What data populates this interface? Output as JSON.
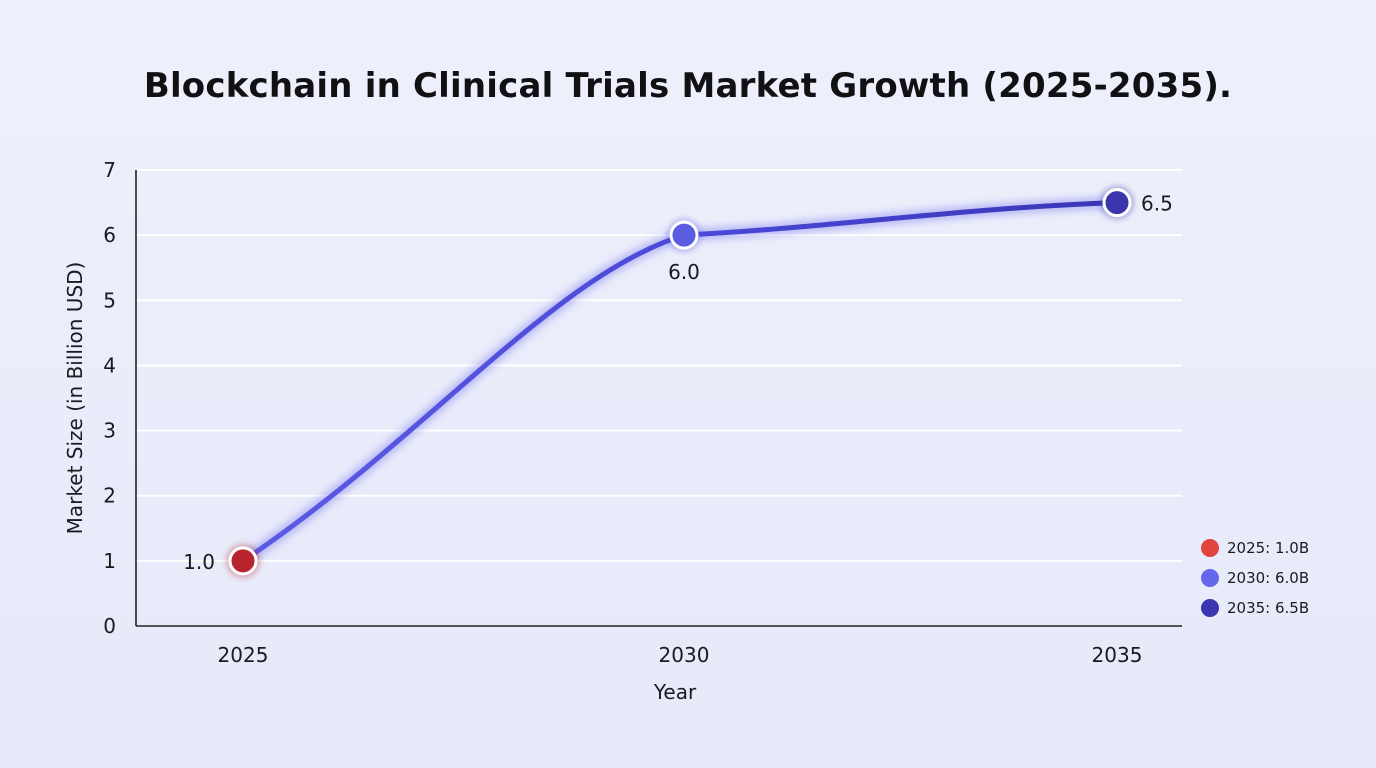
{
  "chart_data": {
    "type": "line",
    "title": "Blockchain in Clinical Trials Market Growth (2025-2035).",
    "xlabel": "Year",
    "ylabel": "Market Size (in Billion USD)",
    "categories": [
      "2025",
      "2030",
      "2035"
    ],
    "values": [
      1.0,
      6.0,
      6.5
    ],
    "data_labels": [
      "1.0",
      "6.0",
      "6.5"
    ],
    "ylim": [
      0,
      7
    ],
    "yticks": [
      "0",
      "1",
      "2",
      "3",
      "4",
      "5",
      "6",
      "7"
    ],
    "grid": true,
    "legend_position": "bottom-right",
    "legend": [
      {
        "label": "2025: 1.0B",
        "color": "#e0453f"
      },
      {
        "label": "2030: 6.0B",
        "color": "#6466ec"
      },
      {
        "label": "2035: 6.5B",
        "color": "#3a36b0"
      }
    ],
    "point_colors": [
      "#b8242e",
      "#5b5de0",
      "#3a34ad"
    ],
    "line_color": "#4a48d6"
  }
}
